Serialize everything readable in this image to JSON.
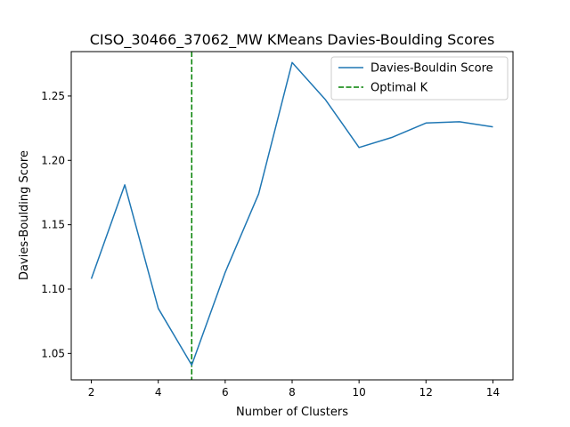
{
  "chart_data": {
    "type": "line",
    "title": "CISO_30466_37062_MW KMeans Davies-Boulding Scores",
    "xlabel": "Number of Clusters",
    "ylabel": "Davies-Boulding Score",
    "xlim": [
      1.4,
      14.6
    ],
    "ylim": [
      1.0295,
      1.2845
    ],
    "x_ticks": [
      2,
      4,
      6,
      8,
      10,
      12,
      14
    ],
    "y_ticks": [
      1.05,
      1.1,
      1.15,
      1.2,
      1.25
    ],
    "x_tick_labels": [
      "2",
      "4",
      "6",
      "8",
      "10",
      "12",
      "14"
    ],
    "y_tick_labels": [
      "1.05",
      "1.10",
      "1.15",
      "1.20",
      "1.25"
    ],
    "grid": false,
    "legend_position": "top-right",
    "series": [
      {
        "name": "Davies-Bouldin Score",
        "color": "#1f77b4",
        "style": "solid",
        "x": [
          2,
          3,
          4,
          5,
          6,
          7,
          8,
          9,
          10,
          11,
          12,
          13,
          14
        ],
        "values": [
          1.108,
          1.181,
          1.085,
          1.041,
          1.113,
          1.174,
          1.276,
          1.247,
          1.21,
          1.218,
          1.229,
          1.23,
          1.226
        ]
      }
    ],
    "reference_lines": [
      {
        "name": "Optimal K",
        "orientation": "vertical",
        "x": 5,
        "color": "#008000",
        "style": "dashed"
      }
    ]
  }
}
